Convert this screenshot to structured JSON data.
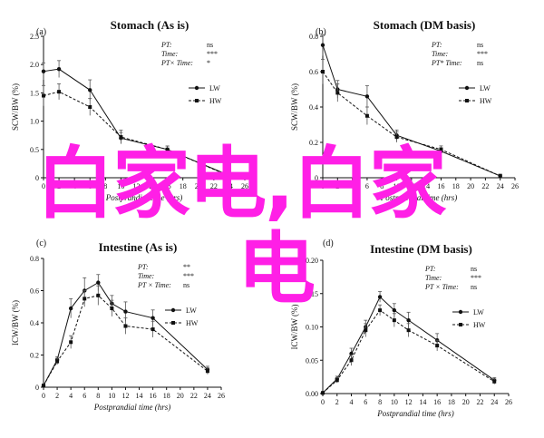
{
  "watermark": {
    "line1": "白家电,白家",
    "line2": "电",
    "color": "#ff1fe6"
  },
  "chart_data": [
    {
      "type": "line",
      "panel_letter": "(a)",
      "title": "Stomach (As is)",
      "ylabel": "SCW/BW (%)",
      "xlabel": "Postprandial time (hrs)",
      "ylim": [
        0,
        2.5
      ],
      "yticks": [
        "0",
        "0.5",
        "1.0",
        "1.5",
        "2.0",
        "2.5"
      ],
      "xlim": [
        0,
        26
      ],
      "xticks": [
        0,
        2,
        4,
        6,
        8,
        10,
        12,
        14,
        16,
        18,
        20,
        22,
        24,
        26
      ],
      "stats": [
        [
          "PT:",
          "ns"
        ],
        [
          "Time:",
          "***"
        ],
        [
          "PT× Time:",
          "*"
        ]
      ],
      "x": [
        0,
        2,
        6,
        10,
        16,
        24
      ],
      "series": [
        {
          "name": "LW",
          "values": [
            1.88,
            1.92,
            1.55,
            0.7,
            0.5,
            0.04
          ],
          "errors": [
            0.15,
            0.15,
            0.18,
            0.1,
            0.06,
            0.02
          ]
        },
        {
          "name": "HW",
          "values": [
            1.45,
            1.52,
            1.25,
            0.72,
            0.5,
            0.03
          ],
          "errors": [
            0.18,
            0.14,
            0.15,
            0.12,
            0.06,
            0.02
          ]
        }
      ]
    },
    {
      "type": "line",
      "panel_letter": "(b)",
      "title": "Stomach (DM basis)",
      "ylabel": "SCW/BW (%)",
      "xlabel": "Postprandial time (hrs)",
      "ylim": [
        0,
        0.8
      ],
      "yticks": [
        "0",
        "0.2",
        "0.4",
        "0.6",
        "0.8"
      ],
      "xlim": [
        0,
        26
      ],
      "xticks": [
        0,
        2,
        4,
        6,
        8,
        10,
        12,
        14,
        16,
        18,
        20,
        22,
        24,
        26
      ],
      "stats": [
        [
          "PT:",
          "ns"
        ],
        [
          "Time:",
          "***"
        ],
        [
          "PT* Time:",
          "ns"
        ]
      ],
      "x": [
        0,
        2,
        6,
        10,
        16,
        24
      ],
      "series": [
        {
          "name": "LW",
          "values": [
            0.75,
            0.5,
            0.46,
            0.24,
            0.15,
            0.01
          ],
          "errors": [
            0.06,
            0.05,
            0.06,
            0.03,
            0.02,
            0.01
          ]
        },
        {
          "name": "HW",
          "values": [
            0.6,
            0.48,
            0.35,
            0.23,
            0.16,
            0.01
          ],
          "errors": [
            0.07,
            0.05,
            0.05,
            0.03,
            0.02,
            0.01
          ]
        }
      ]
    },
    {
      "type": "line",
      "panel_letter": "(c)",
      "title": "Intestine (As is)",
      "ylabel": "ICW/BW (%)",
      "xlabel": "Postprandial time (hrs)",
      "ylim": [
        0,
        0.8
      ],
      "yticks": [
        "0",
        "0.2",
        "0.4",
        "0.6",
        "0.8"
      ],
      "xlim": [
        0,
        26
      ],
      "xticks": [
        0,
        2,
        4,
        6,
        8,
        10,
        12,
        14,
        16,
        18,
        20,
        22,
        24,
        26
      ],
      "stats": [
        [
          "PT:",
          "**"
        ],
        [
          "Time:",
          "***"
        ],
        [
          "PT × Time:",
          "ns"
        ]
      ],
      "x": [
        0,
        2,
        4,
        6,
        8,
        10,
        12,
        16,
        24
      ],
      "series": [
        {
          "name": "LW",
          "values": [
            0.01,
            0.17,
            0.49,
            0.6,
            0.65,
            0.52,
            0.47,
            0.43,
            0.11
          ],
          "errors": [
            0.01,
            0.02,
            0.06,
            0.08,
            0.05,
            0.05,
            0.06,
            0.05,
            0.02
          ]
        },
        {
          "name": "HW",
          "values": [
            0.01,
            0.16,
            0.28,
            0.55,
            0.57,
            0.49,
            0.38,
            0.36,
            0.1
          ],
          "errors": [
            0.01,
            0.02,
            0.04,
            0.05,
            0.06,
            0.05,
            0.05,
            0.05,
            0.02
          ]
        }
      ]
    },
    {
      "type": "line",
      "panel_letter": "(d)",
      "title": "Intestine (DM basis)",
      "ylabel": "ICW/BW (%)",
      "xlabel": "Postprandial time (hrs)",
      "ylim": [
        0,
        0.2
      ],
      "yticks": [
        "0.00",
        "0.05",
        "0.10",
        "0.15",
        "0.20"
      ],
      "xlim": [
        0,
        26
      ],
      "xticks": [
        0,
        2,
        4,
        6,
        8,
        10,
        12,
        14,
        16,
        18,
        20,
        22,
        24,
        26
      ],
      "stats": [
        [
          "PT:",
          "ns"
        ],
        [
          "Time:",
          "***"
        ],
        [
          "PT × Time:",
          "ns"
        ]
      ],
      "x": [
        0,
        2,
        4,
        6,
        8,
        10,
        12,
        16,
        24
      ],
      "series": [
        {
          "name": "LW",
          "values": [
            0.001,
            0.022,
            0.06,
            0.1,
            0.145,
            0.125,
            0.11,
            0.08,
            0.02
          ],
          "errors": [
            0.001,
            0.004,
            0.008,
            0.01,
            0.008,
            0.01,
            0.012,
            0.01,
            0.004
          ]
        },
        {
          "name": "HW",
          "values": [
            0.001,
            0.02,
            0.05,
            0.095,
            0.125,
            0.11,
            0.095,
            0.072,
            0.018
          ],
          "errors": [
            0.001,
            0.004,
            0.008,
            0.01,
            0.008,
            0.01,
            0.01,
            0.008,
            0.004
          ]
        }
      ]
    }
  ]
}
